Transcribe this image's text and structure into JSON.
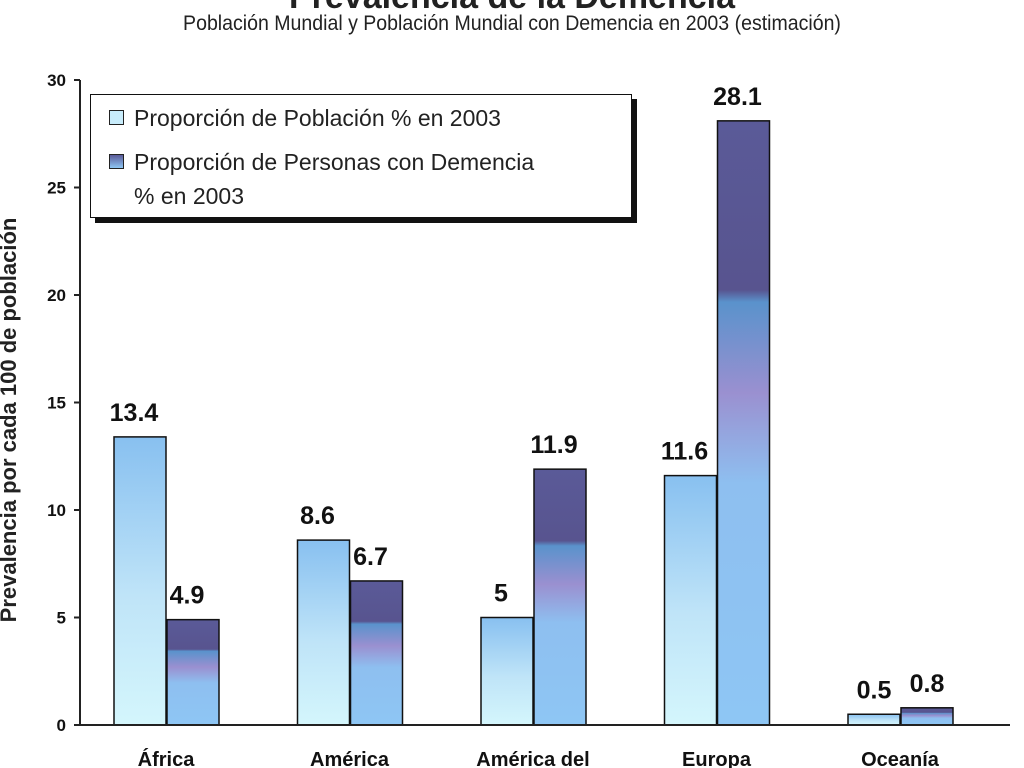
{
  "chart_data": {
    "type": "bar",
    "title": "Prevalencia de la Demencia",
    "subtitle": "Población Mundial y Población Mundial con Demencia en 2003 (estimación)",
    "ylabel": "Prevalencia por cada 100 de población",
    "xlabel": "",
    "ylim": [
      0,
      30
    ],
    "yticks": [
      "0",
      "5",
      "10",
      "15",
      "20",
      "25",
      "30"
    ],
    "categories": [
      "África",
      "América",
      "América del",
      "Europa",
      "Oceanía"
    ],
    "series": [
      {
        "name": "Proporción de Población % en 2003",
        "values": [
          13.4,
          8.6,
          5,
          11.6,
          0.5
        ],
        "labels": [
          "13.4",
          "8.6",
          "5",
          "11.6",
          "0.5"
        ],
        "color": "#8ec8f4"
      },
      {
        "name": "Proporción de Personas con Demencia % en 2003",
        "values": [
          4.9,
          6.7,
          11.9,
          28.1,
          0.8
        ],
        "labels": [
          "4.9",
          "6.7",
          "11.9",
          "28.1",
          "0.8"
        ],
        "color": "#5a5a9c"
      }
    ],
    "legend_line1": "Proporción de Personas con Demencia",
    "legend_line2": "% en 2003",
    "legend_position": "top-left",
    "grid": false
  }
}
